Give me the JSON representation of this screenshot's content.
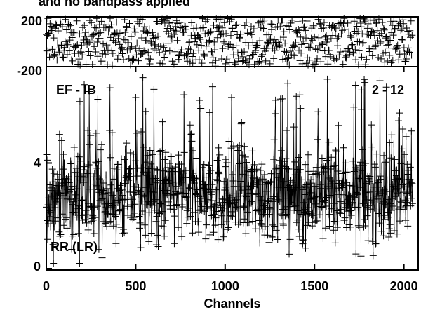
{
  "chart_data": {
    "type": "scatter",
    "title": "and no bandpass applied",
    "xlabel": "Channels",
    "xlim": [
      0,
      2080
    ],
    "x_ticks": [
      "0",
      "500",
      "1000",
      "1500",
      "2000"
    ],
    "x_tick_values": [
      0,
      500,
      1000,
      1500,
      2000
    ],
    "panels": [
      {
        "name": "phase",
        "ylim": [
          -200,
          200
        ],
        "y_ticks": [
          "200",
          "-200"
        ],
        "y_tick_values": [
          200,
          -200
        ],
        "channels_from": 0,
        "channels_to": 2048,
        "profile": "uniform noise spanning full range"
      },
      {
        "name": "amplitude",
        "ylim": [
          0,
          7.6
        ],
        "y_ticks": [
          "4",
          "0"
        ],
        "y_tick_values": [
          4,
          0
        ],
        "labels": {
          "baseline": "EF - IB",
          "range": "2 - 12",
          "polarization": "RR (LR)"
        },
        "channels_from": 0,
        "channels_to": 2048,
        "mean_level": 2.8,
        "spread": 1.3,
        "max_value": 7.3,
        "min_value": 0.2
      }
    ],
    "marker": "plus",
    "grid": false
  }
}
